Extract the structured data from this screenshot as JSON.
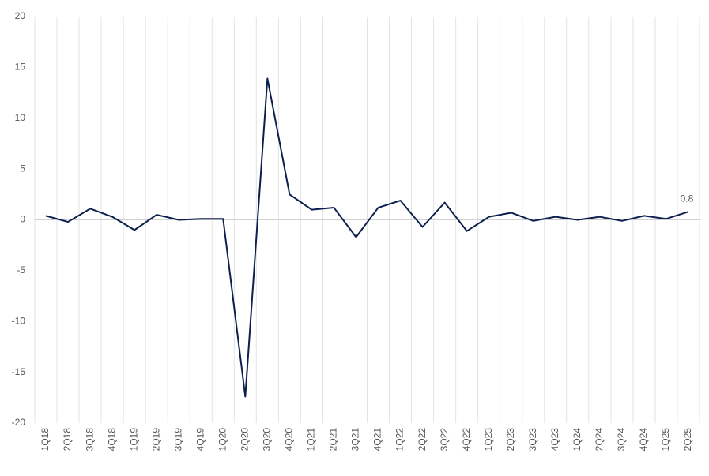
{
  "chart_data": {
    "type": "line",
    "categories": [
      "1Q18",
      "2Q18",
      "3Q18",
      "4Q18",
      "1Q19",
      "2Q19",
      "3Q19",
      "4Q19",
      "1Q20",
      "2Q20",
      "3Q20",
      "4Q20",
      "1Q21",
      "2Q21",
      "3Q21",
      "4Q21",
      "1Q22",
      "2Q22",
      "3Q22",
      "4Q22",
      "1Q23",
      "2Q23",
      "3Q23",
      "4Q23",
      "1Q24",
      "2Q24",
      "3Q24",
      "4Q24",
      "1Q25",
      "2Q25"
    ],
    "values": [
      0.4,
      -0.2,
      1.1,
      0.3,
      -1.0,
      0.5,
      0.0,
      0.1,
      0.1,
      -17.4,
      13.9,
      2.5,
      1.0,
      1.2,
      -1.7,
      1.2,
      1.9,
      -0.7,
      1.7,
      -1.1,
      0.3,
      0.7,
      -0.1,
      0.3,
      0.0,
      0.3,
      -0.1,
      0.4,
      0.1,
      0.8
    ],
    "color": "#0c1f4e",
    "ylim": [
      -20,
      20
    ],
    "yticks": [
      -20,
      -15,
      -10,
      -5,
      0,
      5,
      10,
      15,
      20
    ]
  }
}
